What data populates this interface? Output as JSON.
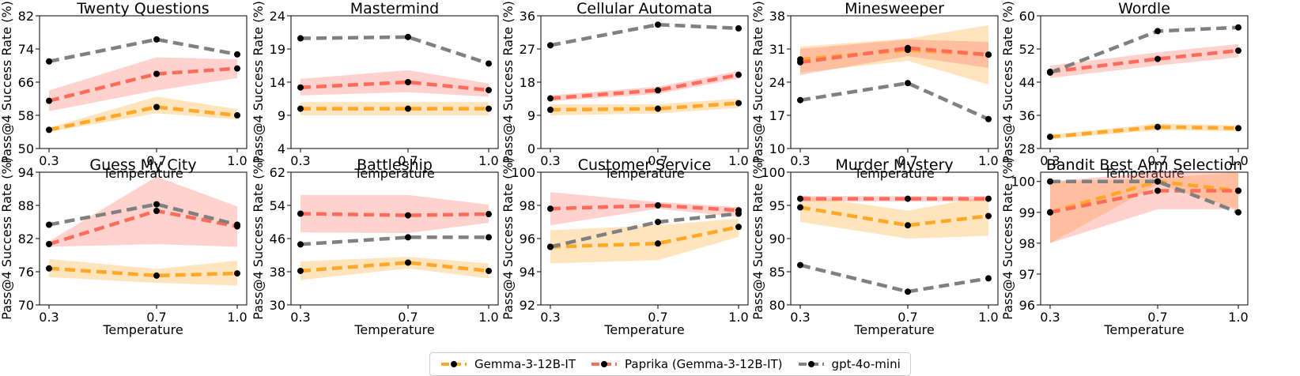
{
  "chart_data": {
    "type": "line",
    "shared": {
      "xlabel": "Temperature",
      "ylabel": "Pass@4 Success Rate (%)",
      "x": [
        0.3,
        0.7,
        1.0
      ],
      "xtick_labels": [
        "0.3",
        "0.7",
        "1.0"
      ]
    },
    "legend": {
      "position": "bottom-center",
      "entries": [
        {
          "name": "Gemma-3-12B-IT",
          "color": "#FFA726",
          "style": "dashed"
        },
        {
          "name": "Paprika (Gemma-3-12B-IT)",
          "color": "#FF6B5B",
          "style": "dashed"
        },
        {
          "name": "gpt-4o-mini",
          "color": "#808080",
          "style": "dashed"
        }
      ]
    },
    "panels": [
      {
        "title": "Twenty Questions",
        "ylim": [
          50,
          82
        ],
        "yticks": [
          50,
          58,
          66,
          74,
          82
        ],
        "series": [
          {
            "name": "Gemma-3-12B-IT",
            "values": [
              54.5,
              60,
              58
            ],
            "band_low": [
              54,
              58.5,
              57
            ],
            "band_high": [
              55,
              62.5,
              59.5
            ]
          },
          {
            "name": "Paprika (Gemma-3-12B-IT)",
            "values": [
              61.5,
              68,
              69.3
            ],
            "band_low": [
              59,
              64,
              67
            ],
            "band_high": [
              64,
              72,
              71.5
            ]
          },
          {
            "name": "gpt-4o-mini",
            "values": [
              71,
              76.3,
              72.7
            ]
          }
        ]
      },
      {
        "title": "Mastermind",
        "ylim": [
          4,
          24
        ],
        "yticks": [
          4,
          9,
          14,
          19,
          24
        ],
        "series": [
          {
            "name": "Gemma-3-12B-IT",
            "values": [
              10,
              10,
              10
            ],
            "band_low": [
              9,
              9,
              9
            ],
            "band_high": [
              11,
              11,
              11
            ]
          },
          {
            "name": "Paprika (Gemma-3-12B-IT)",
            "values": [
              13.2,
              14,
              12.8
            ],
            "band_low": [
              12,
              12.5,
              11.8
            ],
            "band_high": [
              14.5,
              15.8,
              13.8
            ]
          },
          {
            "name": "gpt-4o-mini",
            "values": [
              20.6,
              20.8,
              16.8
            ]
          }
        ]
      },
      {
        "title": "Cellular Automata",
        "ylim": [
          0,
          36
        ],
        "yticks": [
          0,
          9,
          18,
          27,
          36
        ],
        "series": [
          {
            "name": "Gemma-3-12B-IT",
            "values": [
              10.5,
              10.8,
              12.3
            ],
            "band_low": [
              9,
              9.5,
              11
            ],
            "band_high": [
              12,
              12,
              13.6
            ]
          },
          {
            "name": "Paprika (Gemma-3-12B-IT)",
            "values": [
              13.6,
              15.8,
              20
            ],
            "band_low": [
              12.8,
              14.8,
              19
            ],
            "band_high": [
              14.4,
              16.8,
              21
            ]
          },
          {
            "name": "gpt-4o-mini",
            "values": [
              28,
              33.6,
              32.6
            ]
          }
        ]
      },
      {
        "title": "Minesweeper",
        "ylim": [
          10,
          38
        ],
        "yticks": [
          10,
          17,
          24,
          31,
          38
        ],
        "series": [
          {
            "name": "Gemma-3-12B-IT",
            "values": [
              28.8,
              30.8,
              29.8
            ],
            "band_low": [
              26,
              28.5,
              23.5
            ],
            "band_high": [
              31.5,
              33.2,
              36
            ]
          },
          {
            "name": "Paprika (Gemma-3-12B-IT)",
            "values": [
              28.2,
              31.2,
              29.8
            ],
            "band_low": [
              25.5,
              29.5,
              27
            ],
            "band_high": [
              31,
              33,
              32.5
            ]
          },
          {
            "name": "gpt-4o-mini",
            "values": [
              20.2,
              23.8,
              16.2
            ]
          }
        ]
      },
      {
        "title": "Wordle",
        "ylim": [
          28,
          60
        ],
        "yticks": [
          28,
          36,
          44,
          52,
          60
        ],
        "series": [
          {
            "name": "Gemma-3-12B-IT",
            "values": [
              30.8,
              33.2,
              32.9
            ],
            "band_low": [
              30.3,
              32.4,
              32.2
            ],
            "band_high": [
              31.3,
              34,
              33.6
            ]
          },
          {
            "name": "Paprika (Gemma-3-12B-IT)",
            "values": [
              46.5,
              49.6,
              51.6
            ],
            "band_low": [
              45,
              48,
              50
            ],
            "band_high": [
              48,
              51.2,
              53.2
            ]
          },
          {
            "name": "gpt-4o-mini",
            "values": [
              46.3,
              56.3,
              57.2
            ]
          }
        ]
      },
      {
        "title": "Guess My City",
        "ylim": [
          70,
          94
        ],
        "yticks": [
          70,
          76,
          82,
          88,
          94
        ],
        "series": [
          {
            "name": "Gemma-3-12B-IT",
            "values": [
              76.6,
              75.3,
              75.7
            ],
            "band_low": [
              75,
              74,
              73.5
            ],
            "band_high": [
              78.3,
              76.5,
              78
            ]
          },
          {
            "name": "Paprika (Gemma-3-12B-IT)",
            "values": [
              81,
              87,
              84.2
            ],
            "band_low": [
              80.5,
              81,
              80.5
            ],
            "band_high": [
              81.5,
              93.2,
              87.8
            ]
          },
          {
            "name": "gpt-4o-mini",
            "values": [
              84.5,
              88.2,
              84.5
            ]
          }
        ]
      },
      {
        "title": "Battleship",
        "ylim": [
          30,
          62
        ],
        "yticks": [
          30,
          38,
          46,
          54,
          62
        ],
        "series": [
          {
            "name": "Gemma-3-12B-IT",
            "values": [
              38.2,
              40.2,
              38.2
            ],
            "band_low": [
              36,
              38.8,
              36.4
            ],
            "band_high": [
              40.5,
              41.6,
              40
            ]
          },
          {
            "name": "Paprika (Gemma-3-12B-IT)",
            "values": [
              52,
              51.6,
              51.9
            ],
            "band_low": [
              47.5,
              47.3,
              49.8
            ],
            "band_high": [
              56.5,
              56.5,
              54.2
            ]
          },
          {
            "name": "gpt-4o-mini",
            "values": [
              44.6,
              46.3,
              46.3
            ]
          }
        ]
      },
      {
        "title": "Customer Service",
        "ylim": [
          92,
          100
        ],
        "yticks": [
          92,
          94,
          96,
          98,
          100
        ],
        "series": [
          {
            "name": "Gemma-3-12B-IT",
            "values": [
              95.5,
              95.7,
              96.7
            ],
            "band_low": [
              94.5,
              94.7,
              96.1
            ],
            "band_high": [
              96.5,
              96.8,
              97.2
            ]
          },
          {
            "name": "Paprika (Gemma-3-12B-IT)",
            "values": [
              97.8,
              98,
              97.7
            ],
            "band_low": [
              96.8,
              97.8,
              97.3
            ],
            "band_high": [
              98.8,
              98.2,
              97.9
            ]
          },
          {
            "name": "gpt-4o-mini",
            "values": [
              95.5,
              97,
              97.5
            ]
          }
        ]
      },
      {
        "title": "Murder Mystery",
        "ylim": [
          80,
          100
        ],
        "yticks": [
          80,
          85,
          90,
          95,
          100
        ],
        "series": [
          {
            "name": "Gemma-3-12B-IT",
            "values": [
              94.7,
              92,
              93.4
            ],
            "band_low": [
              92.5,
              90,
              90.4
            ],
            "band_high": [
              96.5,
              94.2,
              96.4
            ]
          },
          {
            "name": "Paprika (Gemma-3-12B-IT)",
            "values": [
              96,
              96,
              96
            ],
            "band_low": [
              95.6,
              95.6,
              95.6
            ],
            "band_high": [
              96.4,
              96.4,
              96.4
            ]
          },
          {
            "name": "gpt-4o-mini",
            "values": [
              86,
              82,
              84
            ]
          }
        ]
      },
      {
        "title": "Bandit Best Arm Selection",
        "ylim": [
          96,
          100.3
        ],
        "yticks": [
          96,
          97,
          98,
          99,
          100
        ],
        "series": [
          {
            "name": "Gemma-3-12B-IT",
            "values": [
              99,
              100,
              99.7
            ],
            "band_low": [
              98,
              99.9,
              99.1
            ],
            "band_high": [
              100,
              100.1,
              100.3
            ]
          },
          {
            "name": "Paprika (Gemma-3-12B-IT)",
            "values": [
              99,
              99.7,
              99.7
            ],
            "band_low": [
              98,
              99.1,
              99.1
            ],
            "band_high": [
              100,
              100.3,
              100.3
            ]
          },
          {
            "name": "gpt-4o-mini",
            "values": [
              100,
              100,
              99
            ]
          }
        ]
      }
    ]
  }
}
